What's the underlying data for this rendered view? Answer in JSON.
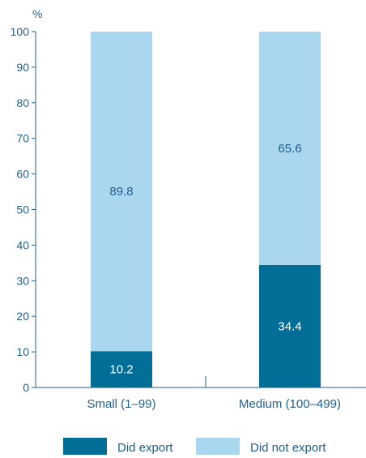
{
  "chart_data": {
    "type": "bar",
    "stacked": true,
    "ylabel": "%",
    "ylim": [
      0,
      100
    ],
    "yticks": [
      0,
      10,
      20,
      30,
      40,
      50,
      60,
      70,
      80,
      90,
      100
    ],
    "categories": [
      "Small (1–99)",
      "Medium (100–499)"
    ],
    "series": [
      {
        "name": "Did export",
        "values": [
          10.2,
          34.4
        ],
        "color": "#006e96",
        "label_color": "#ffffff"
      },
      {
        "name": "Did not export",
        "values": [
          89.8,
          65.6
        ],
        "color": "#a9d7ef",
        "label_color": "#1f5f8b"
      }
    ],
    "legend_position": "bottom",
    "grid": false,
    "axis_color": "#1f5f8b"
  }
}
